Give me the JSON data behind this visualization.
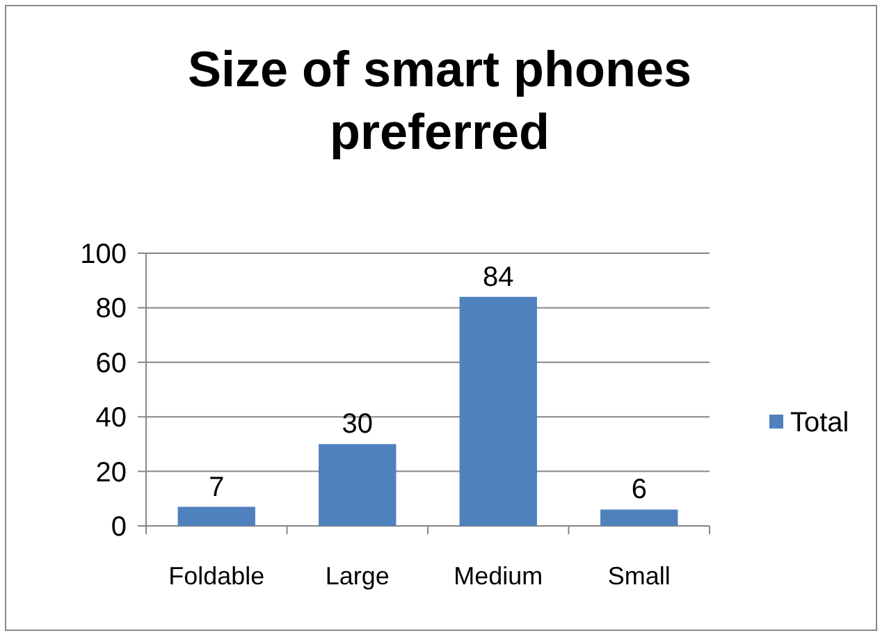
{
  "chart_data": {
    "type": "bar",
    "title": "Size of smart phones preferred",
    "categories": [
      "Foldable",
      "Large",
      "Medium",
      "Small"
    ],
    "series": [
      {
        "name": "Total",
        "color": "#4f81bd",
        "values": [
          7,
          30,
          84,
          6
        ]
      }
    ],
    "ylim": [
      0,
      100
    ],
    "yticks": [
      0,
      20,
      40,
      60,
      80,
      100
    ],
    "grid": "y",
    "legend": "right",
    "data_labels": true
  }
}
